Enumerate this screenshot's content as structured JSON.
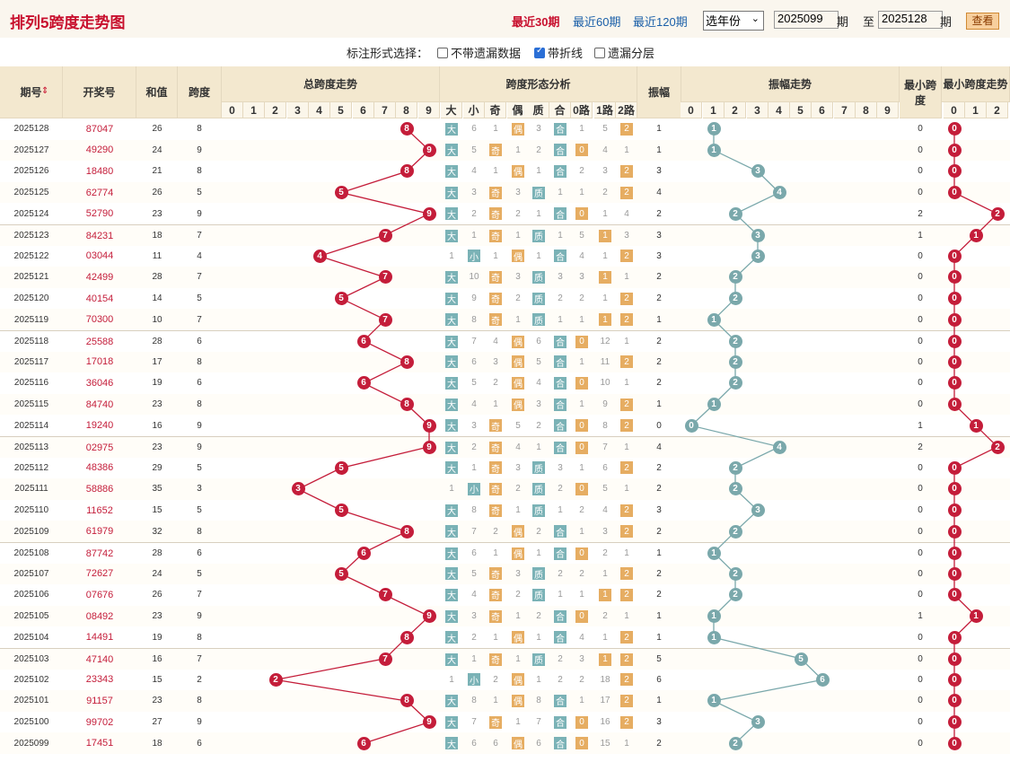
{
  "title": "排列5跨度走势图",
  "periods": [
    "最近30期",
    "最近60期",
    "最近120期"
  ],
  "year_select": "选年份",
  "from_issue": "2025099",
  "to_issue": "2025128",
  "qi": "期",
  "to": "至",
  "query": "查看",
  "option_label": "标注形式选择：",
  "options": [
    {
      "label": "不带遗漏数据",
      "checked": false
    },
    {
      "label": "带折线",
      "checked": true
    },
    {
      "label": "遗漏分层",
      "checked": false
    }
  ],
  "headers": {
    "issue": "期号",
    "number": "开奖号",
    "sum": "和值",
    "span": "跨度",
    "span_trend": "总跨度走势",
    "shape": "跨度形态分析",
    "amp": "振幅",
    "amp_trend": "振幅走势",
    "min_span": "最小跨度",
    "min_trend": "最小跨度走势",
    "digits": [
      "0",
      "1",
      "2",
      "3",
      "4",
      "5",
      "6",
      "7",
      "8",
      "9"
    ],
    "shape_cols": [
      "大",
      "小",
      "奇",
      "偶",
      "质",
      "合",
      "0路",
      "1路",
      "2路"
    ],
    "min_digits": [
      "0",
      "1",
      "2"
    ]
  },
  "colors": {
    "red": "#c41d3a",
    "teal": "#7aa8ab",
    "orange": "#e6ad62",
    "header": "#f3e8cf"
  },
  "rows": [
    [
      "2025128",
      "87047",
      "26",
      "8",
      "8",
      "1",
      "0",
      "0"
    ],
    [
      "2025127",
      "49290",
      "24",
      "9",
      "9",
      "1",
      "0",
      "0"
    ],
    [
      "2025126",
      "18480",
      "21",
      "8",
      "8",
      "3",
      "0",
      "0"
    ],
    [
      "2025125",
      "62774",
      "26",
      "5",
      "5",
      "4",
      "0",
      "0"
    ],
    [
      "2025124",
      "52790",
      "23",
      "9",
      "9",
      "2",
      "2",
      "2"
    ],
    [
      "2025123",
      "84231",
      "18",
      "7",
      "7",
      "3",
      "1",
      "1"
    ],
    [
      "2025122",
      "03044",
      "11",
      "4",
      "4",
      "3",
      "0",
      "0"
    ],
    [
      "2025121",
      "42499",
      "28",
      "7",
      "7",
      "2",
      "0",
      "0"
    ],
    [
      "2025120",
      "40154",
      "14",
      "5",
      "5",
      "2",
      "0",
      "0"
    ],
    [
      "2025119",
      "70300",
      "10",
      "7",
      "7",
      "1",
      "0",
      "0"
    ],
    [
      "2025118",
      "25588",
      "28",
      "6",
      "6",
      "2",
      "0",
      "0"
    ],
    [
      "2025117",
      "17018",
      "17",
      "8",
      "8",
      "2",
      "0",
      "0"
    ],
    [
      "2025116",
      "36046",
      "19",
      "6",
      "6",
      "2",
      "0",
      "0"
    ],
    [
      "2025115",
      "84740",
      "23",
      "8",
      "8",
      "1",
      "0",
      "0"
    ],
    [
      "2025114",
      "19240",
      "16",
      "9",
      "9",
      "0",
      "1",
      "1"
    ],
    [
      "2025113",
      "02975",
      "23",
      "9",
      "9",
      "4",
      "2",
      "2"
    ],
    [
      "2025112",
      "48386",
      "29",
      "5",
      "5",
      "2",
      "0",
      "0"
    ],
    [
      "2025111",
      "58886",
      "35",
      "3",
      "3",
      "2",
      "0",
      "0"
    ],
    [
      "2025110",
      "11652",
      "15",
      "5",
      "5",
      "3",
      "0",
      "0"
    ],
    [
      "2025109",
      "61979",
      "32",
      "8",
      "8",
      "2",
      "0",
      "0"
    ],
    [
      "2025108",
      "87742",
      "28",
      "6",
      "6",
      "1",
      "0",
      "0"
    ],
    [
      "2025107",
      "72627",
      "24",
      "5",
      "5",
      "2",
      "0",
      "0"
    ],
    [
      "2025106",
      "07676",
      "26",
      "7",
      "7",
      "2",
      "0",
      "0"
    ],
    [
      "2025105",
      "08492",
      "23",
      "9",
      "9",
      "1",
      "1",
      "1"
    ],
    [
      "2025104",
      "14491",
      "19",
      "8",
      "8",
      "1",
      "0",
      "0"
    ],
    [
      "2025103",
      "47140",
      "16",
      "7",
      "7",
      "5",
      "0",
      "0"
    ],
    [
      "2025102",
      "23343",
      "15",
      "2",
      "2",
      "6",
      "0",
      "0"
    ],
    [
      "2025101",
      "91157",
      "23",
      "8",
      "8",
      "1",
      "0",
      "0"
    ],
    [
      "2025100",
      "99702",
      "27",
      "9",
      "9",
      "3",
      "0",
      "0"
    ],
    [
      "2025099",
      "17451",
      "18",
      "6",
      "6",
      "2",
      "0",
      "0"
    ]
  ],
  "shape_rows": [
    [
      "大",
      "6",
      "1",
      "偶",
      "3",
      "合",
      "1",
      "5",
      "2"
    ],
    [
      "大",
      "5",
      "奇",
      "1",
      "2",
      "合",
      "0",
      "4",
      "1"
    ],
    [
      "大",
      "4",
      "1",
      "偶",
      "1",
      "合",
      "2",
      "3",
      "2"
    ],
    [
      "大",
      "3",
      "奇",
      "3",
      "质",
      "1",
      "1",
      "2",
      "2"
    ],
    [
      "大",
      "2",
      "奇",
      "2",
      "1",
      "合",
      "0",
      "1",
      "4"
    ],
    [
      "大",
      "1",
      "奇",
      "1",
      "质",
      "1",
      "5",
      "1",
      "3"
    ],
    [
      "1",
      "小",
      "1",
      "偶",
      "1",
      "合",
      "4",
      "1",
      "2"
    ],
    [
      "大",
      "10",
      "奇",
      "3",
      "质",
      "3",
      "3",
      "1",
      "1"
    ],
    [
      "大",
      "9",
      "奇",
      "2",
      "质",
      "2",
      "2",
      "1",
      "2"
    ],
    [
      "大",
      "8",
      "奇",
      "1",
      "质",
      "1",
      "1",
      "1",
      "2"
    ],
    [
      "大",
      "7",
      "4",
      "偶",
      "6",
      "合",
      "0",
      "12",
      "1"
    ],
    [
      "大",
      "6",
      "3",
      "偶",
      "5",
      "合",
      "1",
      "11",
      "2"
    ],
    [
      "大",
      "5",
      "2",
      "偶",
      "4",
      "合",
      "0",
      "10",
      "1"
    ],
    [
      "大",
      "4",
      "1",
      "偶",
      "3",
      "合",
      "1",
      "9",
      "2"
    ],
    [
      "大",
      "3",
      "奇",
      "5",
      "2",
      "合",
      "0",
      "8",
      "2"
    ],
    [
      "大",
      "2",
      "奇",
      "4",
      "1",
      "合",
      "0",
      "7",
      "1"
    ],
    [
      "大",
      "1",
      "奇",
      "3",
      "质",
      "3",
      "1",
      "6",
      "2"
    ],
    [
      "1",
      "小",
      "奇",
      "2",
      "质",
      "2",
      "0",
      "5",
      "1"
    ],
    [
      "大",
      "8",
      "奇",
      "1",
      "质",
      "1",
      "2",
      "4",
      "2"
    ],
    [
      "大",
      "7",
      "2",
      "偶",
      "2",
      "合",
      "1",
      "3",
      "2"
    ],
    [
      "大",
      "6",
      "1",
      "偶",
      "1",
      "合",
      "0",
      "2",
      "1"
    ],
    [
      "大",
      "5",
      "奇",
      "3",
      "质",
      "2",
      "2",
      "1",
      "2"
    ],
    [
      "大",
      "4",
      "奇",
      "2",
      "质",
      "1",
      "1",
      "1",
      "2"
    ],
    [
      "大",
      "3",
      "奇",
      "1",
      "2",
      "合",
      "0",
      "2",
      "1"
    ],
    [
      "大",
      "2",
      "1",
      "偶",
      "1",
      "合",
      "4",
      "1",
      "2"
    ],
    [
      "大",
      "1",
      "奇",
      "1",
      "质",
      "2",
      "3",
      "1",
      "2"
    ],
    [
      "1",
      "小",
      "2",
      "偶",
      "1",
      "2",
      "2",
      "18",
      "2"
    ],
    [
      "大",
      "8",
      "1",
      "偶",
      "8",
      "合",
      "1",
      "17",
      "2"
    ],
    [
      "大",
      "7",
      "奇",
      "1",
      "7",
      "合",
      "0",
      "16",
      "2"
    ],
    [
      "大",
      "6",
      "6",
      "偶",
      "6",
      "合",
      "0",
      "15",
      "1"
    ]
  ]
}
